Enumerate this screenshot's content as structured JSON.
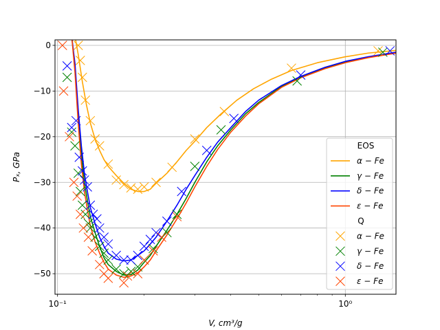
{
  "chart_data": {
    "type": "line",
    "title": "",
    "xlabel": "V, cm³/g",
    "ylabel": "Pₓ, GPa",
    "xscale": "log",
    "xlim": [
      0.098,
      1.5
    ],
    "ylim": [
      -54.5,
      1.2
    ],
    "grid": true,
    "legend_position": "right",
    "x_ticks": [
      {
        "value": 0.1,
        "label": "10⁻¹"
      },
      {
        "value": 1.0,
        "label": "10⁰"
      }
    ],
    "y_ticks": [
      {
        "value": 0,
        "label": "0"
      },
      {
        "value": -10,
        "label": "−10"
      },
      {
        "value": -20,
        "label": "−20"
      },
      {
        "value": -30,
        "label": "−30"
      },
      {
        "value": -40,
        "label": "−40"
      },
      {
        "value": -50,
        "label": "−50"
      }
    ],
    "legend": {
      "eos_title": "EOS",
      "q_title": "Q"
    },
    "eos_series": [
      {
        "name": "α − Fe",
        "color": "#ffa500",
        "points": [
          [
            0.115,
            2
          ],
          [
            0.118,
            -2
          ],
          [
            0.122,
            -8
          ],
          [
            0.126,
            -13
          ],
          [
            0.13,
            -17
          ],
          [
            0.135,
            -20.5
          ],
          [
            0.14,
            -23
          ],
          [
            0.145,
            -25
          ],
          [
            0.15,
            -26.5
          ],
          [
            0.16,
            -28.5
          ],
          [
            0.17,
            -30.2
          ],
          [
            0.18,
            -31.5
          ],
          [
            0.19,
            -32
          ],
          [
            0.2,
            -32
          ],
          [
            0.21,
            -31.5
          ],
          [
            0.22,
            -30.2
          ],
          [
            0.24,
            -28
          ],
          [
            0.26,
            -25.5
          ],
          [
            0.28,
            -23
          ],
          [
            0.3,
            -21
          ],
          [
            0.33,
            -18
          ],
          [
            0.37,
            -15
          ],
          [
            0.42,
            -12
          ],
          [
            0.48,
            -9.5
          ],
          [
            0.55,
            -7.5
          ],
          [
            0.65,
            -5.5
          ],
          [
            0.8,
            -3.8
          ],
          [
            1.0,
            -2.5
          ],
          [
            1.2,
            -1.7
          ],
          [
            1.5,
            -1.1
          ]
        ]
      },
      {
        "name": "γ − Fe",
        "color": "#008000",
        "points": [
          [
            0.112,
            2
          ],
          [
            0.115,
            -5
          ],
          [
            0.118,
            -15
          ],
          [
            0.121,
            -24
          ],
          [
            0.124,
            -30
          ],
          [
            0.127,
            -34
          ],
          [
            0.13,
            -37.5
          ],
          [
            0.135,
            -41
          ],
          [
            0.14,
            -44
          ],
          [
            0.145,
            -46.5
          ],
          [
            0.15,
            -48
          ],
          [
            0.16,
            -49.5
          ],
          [
            0.17,
            -50.3
          ],
          [
            0.18,
            -50.2
          ],
          [
            0.19,
            -49.2
          ],
          [
            0.2,
            -47.5
          ],
          [
            0.21,
            -46
          ],
          [
            0.22,
            -44
          ],
          [
            0.24,
            -40.5
          ],
          [
            0.26,
            -37
          ],
          [
            0.28,
            -33.5
          ],
          [
            0.3,
            -30
          ],
          [
            0.33,
            -25.5
          ],
          [
            0.36,
            -22
          ],
          [
            0.4,
            -18.5
          ],
          [
            0.45,
            -15
          ],
          [
            0.5,
            -12.5
          ],
          [
            0.6,
            -9
          ],
          [
            0.7,
            -7
          ],
          [
            0.85,
            -5
          ],
          [
            1.0,
            -3.7
          ],
          [
            1.2,
            -2.6
          ],
          [
            1.5,
            -1.6
          ]
        ]
      },
      {
        "name": "δ − Fe",
        "color": "#0000ff",
        "points": [
          [
            0.112,
            2
          ],
          [
            0.115,
            -4
          ],
          [
            0.118,
            -14
          ],
          [
            0.121,
            -22
          ],
          [
            0.124,
            -28
          ],
          [
            0.127,
            -32
          ],
          [
            0.13,
            -35.5
          ],
          [
            0.135,
            -39
          ],
          [
            0.14,
            -42
          ],
          [
            0.145,
            -44
          ],
          [
            0.15,
            -45.5
          ],
          [
            0.16,
            -46.8
          ],
          [
            0.17,
            -47.2
          ],
          [
            0.18,
            -47
          ],
          [
            0.19,
            -46
          ],
          [
            0.2,
            -45
          ],
          [
            0.21,
            -43.5
          ],
          [
            0.22,
            -42
          ],
          [
            0.24,
            -38.5
          ],
          [
            0.26,
            -35
          ],
          [
            0.28,
            -31.5
          ],
          [
            0.3,
            -28.5
          ],
          [
            0.33,
            -24.5
          ],
          [
            0.36,
            -21.2
          ],
          [
            0.4,
            -18
          ],
          [
            0.45,
            -14.5
          ],
          [
            0.5,
            -12
          ],
          [
            0.6,
            -8.8
          ],
          [
            0.7,
            -6.8
          ],
          [
            0.85,
            -4.8
          ],
          [
            1.0,
            -3.5
          ],
          [
            1.2,
            -2.5
          ],
          [
            1.5,
            -1.5
          ]
        ]
      },
      {
        "name": "ε − Fe",
        "color": "#ff4500",
        "points": [
          [
            0.112,
            2
          ],
          [
            0.115,
            -6
          ],
          [
            0.118,
            -17
          ],
          [
            0.121,
            -26
          ],
          [
            0.124,
            -32
          ],
          [
            0.127,
            -36
          ],
          [
            0.13,
            -39.5
          ],
          [
            0.135,
            -43
          ],
          [
            0.14,
            -45.5
          ],
          [
            0.145,
            -47.5
          ],
          [
            0.15,
            -49
          ],
          [
            0.16,
            -50.3
          ],
          [
            0.17,
            -50.8
          ],
          [
            0.18,
            -50.5
          ],
          [
            0.19,
            -49.8
          ],
          [
            0.2,
            -48.5
          ],
          [
            0.21,
            -47
          ],
          [
            0.22,
            -45
          ],
          [
            0.24,
            -41.5
          ],
          [
            0.26,
            -38
          ],
          [
            0.28,
            -34.5
          ],
          [
            0.3,
            -31
          ],
          [
            0.33,
            -26.5
          ],
          [
            0.36,
            -22.8
          ],
          [
            0.4,
            -19
          ],
          [
            0.45,
            -15.5
          ],
          [
            0.5,
            -12.8
          ],
          [
            0.6,
            -9.2
          ],
          [
            0.7,
            -7.1
          ],
          [
            0.85,
            -5.1
          ],
          [
            1.0,
            -3.8
          ],
          [
            1.2,
            -2.7
          ],
          [
            1.5,
            -1.7
          ]
        ]
      }
    ],
    "q_series": [
      {
        "name": "α − Fe",
        "color": "#ffa500",
        "points": [
          [
            0.118,
            0
          ],
          [
            0.12,
            -3.3
          ],
          [
            0.122,
            -7
          ],
          [
            0.125,
            -12
          ],
          [
            0.13,
            -16.5
          ],
          [
            0.135,
            -20.5
          ],
          [
            0.14,
            -22
          ],
          [
            0.15,
            -26
          ],
          [
            0.16,
            -29.5
          ],
          [
            0.17,
            -30.5
          ],
          [
            0.18,
            -31.2
          ],
          [
            0.19,
            -31.5
          ],
          [
            0.2,
            -31
          ],
          [
            0.22,
            -30
          ],
          [
            0.25,
            -26.7
          ],
          [
            0.3,
            -20.5
          ],
          [
            0.38,
            -14.5
          ],
          [
            0.65,
            -5
          ],
          [
            1.3,
            -1.2
          ]
        ]
      },
      {
        "name": "γ − Fe",
        "color": "#008000",
        "points": [
          [
            0.108,
            -7
          ],
          [
            0.112,
            -19
          ],
          [
            0.115,
            -22
          ],
          [
            0.118,
            -28
          ],
          [
            0.12,
            -32
          ],
          [
            0.122,
            -35
          ],
          [
            0.125,
            -37
          ],
          [
            0.128,
            -39
          ],
          [
            0.13,
            -40
          ],
          [
            0.135,
            -42
          ],
          [
            0.14,
            -44
          ],
          [
            0.145,
            -45.5
          ],
          [
            0.15,
            -47
          ],
          [
            0.16,
            -49
          ],
          [
            0.17,
            -50
          ],
          [
            0.18,
            -49.5
          ],
          [
            0.19,
            -48.5
          ],
          [
            0.2,
            -47
          ],
          [
            0.215,
            -44.5
          ],
          [
            0.24,
            -41
          ],
          [
            0.26,
            -37
          ],
          [
            0.3,
            -26.5
          ],
          [
            0.37,
            -18.5
          ],
          [
            0.68,
            -7.8
          ],
          [
            1.35,
            -1.5
          ]
        ]
      },
      {
        "name": "δ − Fe",
        "color": "#0000ff",
        "points": [
          [
            0.108,
            -4.5
          ],
          [
            0.112,
            -18
          ],
          [
            0.116,
            -16.5
          ],
          [
            0.119,
            -24.5
          ],
          [
            0.122,
            -27.5
          ],
          [
            0.124,
            -29.5
          ],
          [
            0.127,
            -31
          ],
          [
            0.13,
            -35
          ],
          [
            0.133,
            -37
          ],
          [
            0.137,
            -38
          ],
          [
            0.14,
            -40
          ],
          [
            0.145,
            -42
          ],
          [
            0.15,
            -43.5
          ],
          [
            0.16,
            -46
          ],
          [
            0.17,
            -47
          ],
          [
            0.18,
            -47
          ],
          [
            0.19,
            -46
          ],
          [
            0.2,
            -44
          ],
          [
            0.21,
            -42.5
          ],
          [
            0.22,
            -41
          ],
          [
            0.24,
            -38.5
          ],
          [
            0.27,
            -32
          ],
          [
            0.33,
            -23
          ],
          [
            0.41,
            -16
          ],
          [
            0.7,
            -6.5
          ],
          [
            1.43,
            -1.2
          ]
        ]
      },
      {
        "name": "ε − Fe",
        "color": "#ff4500",
        "points": [
          [
            0.104,
            0
          ],
          [
            0.105,
            -10
          ],
          [
            0.11,
            -20
          ],
          [
            0.114,
            -30
          ],
          [
            0.117,
            -33
          ],
          [
            0.12,
            -37
          ],
          [
            0.123,
            -40
          ],
          [
            0.128,
            -42
          ],
          [
            0.132,
            -45
          ],
          [
            0.14,
            -48
          ],
          [
            0.145,
            -50
          ],
          [
            0.15,
            -51
          ],
          [
            0.17,
            -52
          ],
          [
            0.175,
            -50.5
          ],
          [
            0.19,
            -50
          ],
          [
            0.2,
            -47
          ],
          [
            0.215,
            -45
          ],
          [
            0.23,
            -42
          ],
          [
            0.26,
            -37.5
          ]
        ]
      }
    ]
  }
}
